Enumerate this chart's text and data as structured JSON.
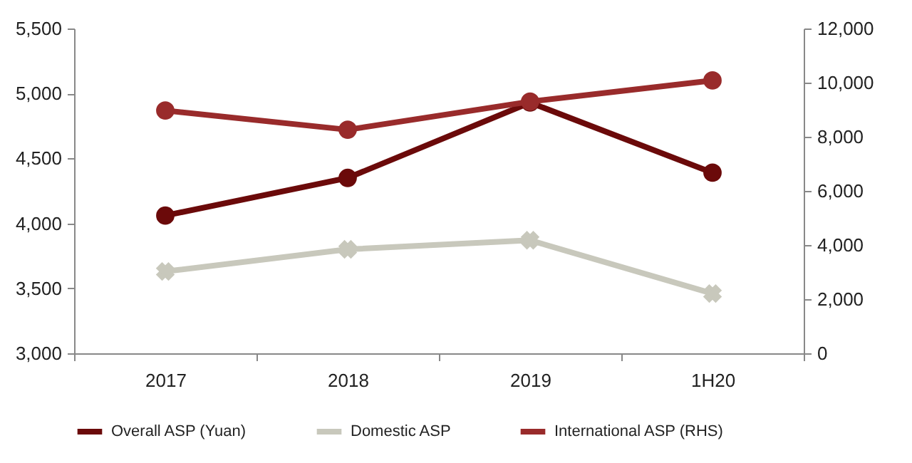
{
  "chart_data": {
    "type": "line",
    "categories": [
      "2017",
      "2018",
      "2019",
      "1H20"
    ],
    "series": [
      {
        "name": "Overall ASP (Yuan)",
        "color": "#6b0a0a",
        "marker": "circle",
        "values": [
          4060,
          4350,
          4930,
          4390
        ]
      },
      {
        "name": "Domestic ASP",
        "color": "#c8c8bc",
        "marker": "cross",
        "values": [
          3630,
          3800,
          3870,
          3460
        ]
      },
      {
        "name": "International ASP (RHS)",
        "color": "#992b2b",
        "marker": "circle",
        "axis": "y2",
        "values": [
          8970,
          8260,
          9300,
          10080
        ]
      }
    ],
    "ylim": [
      3000,
      5500
    ],
    "yticks": [
      {
        "value": 3000,
        "label": "3,000"
      },
      {
        "value": 3500,
        "label": "3,500"
      },
      {
        "value": 4000,
        "label": "4,000"
      },
      {
        "value": 4500,
        "label": "4,500"
      },
      {
        "value": 5000,
        "label": "5,000"
      },
      {
        "value": 5500,
        "label": "5,500"
      }
    ],
    "y2lim": [
      0,
      12000
    ],
    "y2ticks": [
      0,
      {
        "value": 2000,
        "label": "2,000"
      },
      {
        "value": 4000,
        "label": "4,000"
      },
      {
        "value": 6000,
        "label": "6,000"
      },
      {
        "value": 8000,
        "label": "8,000"
      },
      {
        "value": 10000,
        "label": "10,000"
      },
      {
        "value": 12000,
        "label": "12,000"
      }
    ],
    "grid": false,
    "legend": "bottom"
  }
}
